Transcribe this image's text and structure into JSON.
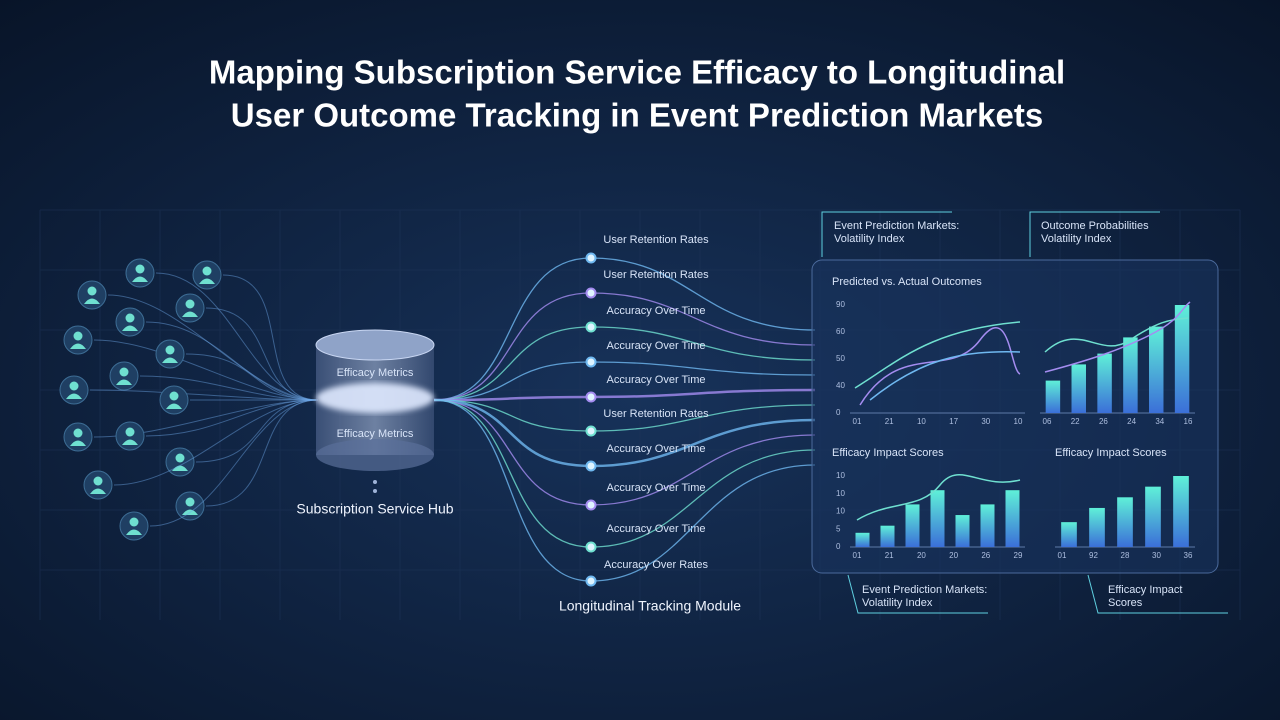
{
  "title": [
    "Mapping Subscription Service Efficacy to Longitudinal",
    "User Outcome Tracking in Event Prediction Markets"
  ],
  "hub": {
    "labels": [
      "Efficacy Metrics",
      "Efficacy Metrics"
    ],
    "caption": "Subscription Service Hub"
  },
  "streams": {
    "labels": [
      "User Retention Rates",
      "User Retention Rates",
      "Accuracy Over Time",
      "Accuracy Over Time",
      "Accuracy Over Time",
      "User Retention Rates",
      "Accuracy Over Time",
      "Accuracy Over Time",
      "Accuracy Over Time",
      "Accuracy Over Rates"
    ],
    "caption": "Longitudinal Tracking Module"
  },
  "panel": {
    "charts": [
      {
        "title": "Predicted vs. Actual Outcomes",
        "yticks": [
          "90",
          "60",
          "50",
          "40",
          "0"
        ],
        "xticks": [
          "01",
          "21",
          "10",
          "17",
          "30",
          "10"
        ]
      },
      {
        "xticks": [
          "06",
          "22",
          "26",
          "24",
          "34",
          "16"
        ]
      },
      {
        "title": "Efficacy Impact Scores",
        "yticks": [
          "10",
          "10",
          "10",
          "5",
          "0"
        ],
        "xticks": [
          "01",
          "21",
          "20",
          "20",
          "26",
          "29"
        ]
      },
      {
        "title": "Efficacy Impact Scores",
        "xticks": [
          "01",
          "92",
          "28",
          "30",
          "36"
        ]
      }
    ]
  },
  "callouts": [
    {
      "lines": [
        "Event Prediction Markets:",
        "Volatility Index"
      ]
    },
    {
      "lines": [
        "Outcome Probabilities",
        "Volatility Index"
      ]
    },
    {
      "lines": [
        "Event Prediction Markets:",
        "Volatility Index"
      ]
    },
    {
      "lines": [
        "Efficacy Impact",
        "Scores"
      ]
    }
  ]
}
